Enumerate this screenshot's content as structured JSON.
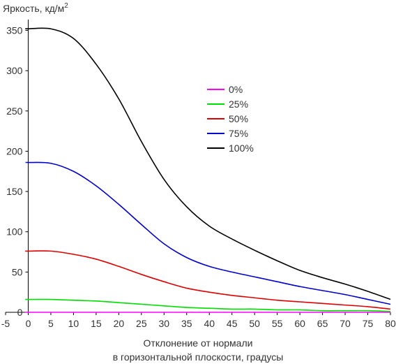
{
  "chart_data": {
    "type": "line",
    "ylabel": "Яркость, кд/м",
    "ylabel_sup": "2",
    "xlabel_line1": "Отклонение от нормали",
    "xlabel_line2": "в горизонтальной плоскости, градусы",
    "xlim": [
      -5,
      80
    ],
    "ylim": [
      0,
      360
    ],
    "x_ticks": [
      -5,
      0,
      5,
      10,
      15,
      20,
      25,
      30,
      35,
      40,
      45,
      50,
      55,
      60,
      65,
      70,
      75,
      80
    ],
    "y_ticks": [
      0,
      50,
      100,
      150,
      200,
      250,
      300,
      350
    ],
    "grid": false,
    "legend_position": "center-right",
    "x": [
      0,
      5,
      10,
      15,
      20,
      25,
      30,
      35,
      40,
      45,
      50,
      55,
      60,
      65,
      70,
      75,
      80
    ],
    "series": [
      {
        "name": "0%",
        "color": "#ff00ff",
        "values": [
          0,
          0,
          0,
          0,
          0,
          0,
          0,
          0,
          0,
          0,
          0,
          0,
          0,
          0,
          0,
          0,
          0
        ]
      },
      {
        "name": "25%",
        "color": "#00dd00",
        "values": [
          16,
          16,
          15,
          14,
          12,
          10,
          8,
          6,
          5,
          4,
          4,
          3,
          3,
          2,
          2,
          2,
          1
        ]
      },
      {
        "name": "50%",
        "color": "#dd0000",
        "values": [
          76,
          76,
          72,
          66,
          57,
          47,
          38,
          30,
          25,
          21,
          18,
          15,
          13,
          11,
          9,
          7,
          4
        ]
      },
      {
        "name": "75%",
        "color": "#0000cc",
        "values": [
          186,
          185,
          175,
          157,
          134,
          109,
          85,
          68,
          57,
          50,
          44,
          38,
          32,
          27,
          22,
          16,
          10
        ]
      },
      {
        "name": "100%",
        "color": "#000000",
        "values": [
          352,
          352,
          340,
          308,
          265,
          212,
          165,
          131,
          107,
          91,
          77,
          64,
          52,
          43,
          35,
          26,
          16
        ]
      }
    ]
  }
}
